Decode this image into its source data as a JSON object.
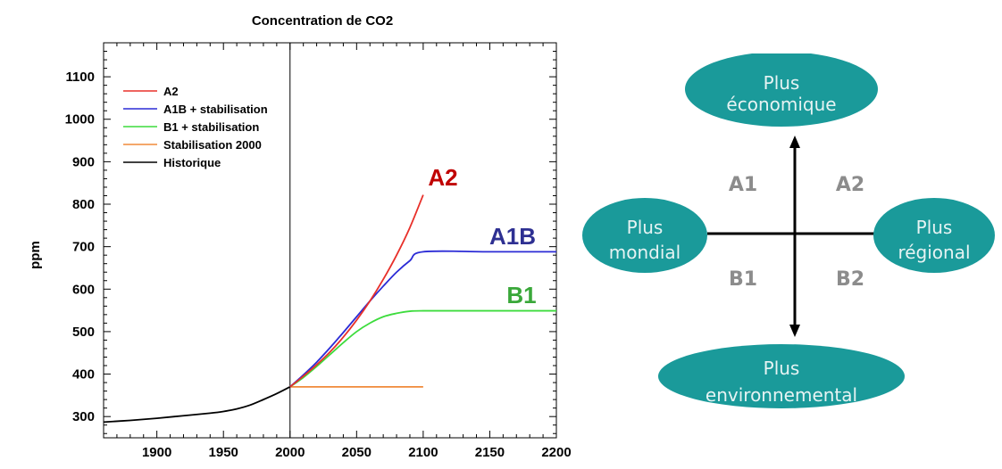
{
  "chart_data": {
    "type": "line",
    "title": "Concentration de CO2",
    "ylabel": "ppm",
    "xlabel": "",
    "xlim": [
      1860,
      2200
    ],
    "ylim": [
      250,
      1180
    ],
    "xticks": [
      1900,
      1950,
      2000,
      2050,
      2100,
      2150,
      2200
    ],
    "yticks": [
      300,
      400,
      500,
      600,
      700,
      800,
      900,
      1000,
      1100
    ],
    "vline_x": 2000,
    "legend_position": "top-left",
    "series": [
      {
        "name": "A2",
        "color": "#e8302a",
        "label": "A2",
        "label_color": "#c00000",
        "x": [
          2000,
          2010,
          2020,
          2030,
          2040,
          2050,
          2060,
          2070,
          2080,
          2090,
          2100
        ],
        "y": [
          370,
          395,
          422,
          452,
          487,
          527,
          572,
          623,
          680,
          745,
          822
        ]
      },
      {
        "name": "A1B + stabilisation",
        "color": "#2b2bd6",
        "label": "A1B",
        "label_color": "#2e3092",
        "x": [
          2000,
          2010,
          2020,
          2030,
          2040,
          2050,
          2060,
          2070,
          2080,
          2090,
          2100,
          2150,
          2200
        ],
        "y": [
          370,
          398,
          428,
          462,
          498,
          535,
          572,
          607,
          640,
          667,
          688,
          688,
          688
        ]
      },
      {
        "name": "B1 + stabilisation",
        "color": "#3ddc3d",
        "label": "B1",
        "label_color": "#3aa83a",
        "x": [
          2000,
          2010,
          2020,
          2030,
          2040,
          2050,
          2060,
          2070,
          2080,
          2090,
          2100,
          2150,
          2200
        ],
        "y": [
          370,
          392,
          418,
          446,
          474,
          500,
          520,
          535,
          543,
          548,
          549,
          549,
          549
        ]
      },
      {
        "name": "Stabilisation 2000",
        "color": "#f08a3a",
        "x": [
          2000,
          2100
        ],
        "y": [
          370,
          370
        ]
      },
      {
        "name": "Historique",
        "color": "#000000",
        "x": [
          1860,
          1880,
          1900,
          1920,
          1940,
          1950,
          1960,
          1970,
          1980,
          1990,
          2000
        ],
        "y": [
          287,
          291,
          296,
          302,
          308,
          312,
          318,
          327,
          340,
          354,
          370
        ]
      }
    ]
  },
  "diagram": {
    "oval_color": "#1a9a9a",
    "axis_color": "#000000",
    "top": {
      "line1": "Plus",
      "line2": "économique"
    },
    "bottom": {
      "line1": "Plus",
      "line2": "environnemental"
    },
    "left": {
      "line1": "Plus",
      "line2": "mondial"
    },
    "right": {
      "line1": "Plus",
      "line2": "régional"
    },
    "quadrants": {
      "top_left": "A1",
      "top_right": "A2",
      "bottom_left": "B1",
      "bottom_right": "B2"
    }
  }
}
